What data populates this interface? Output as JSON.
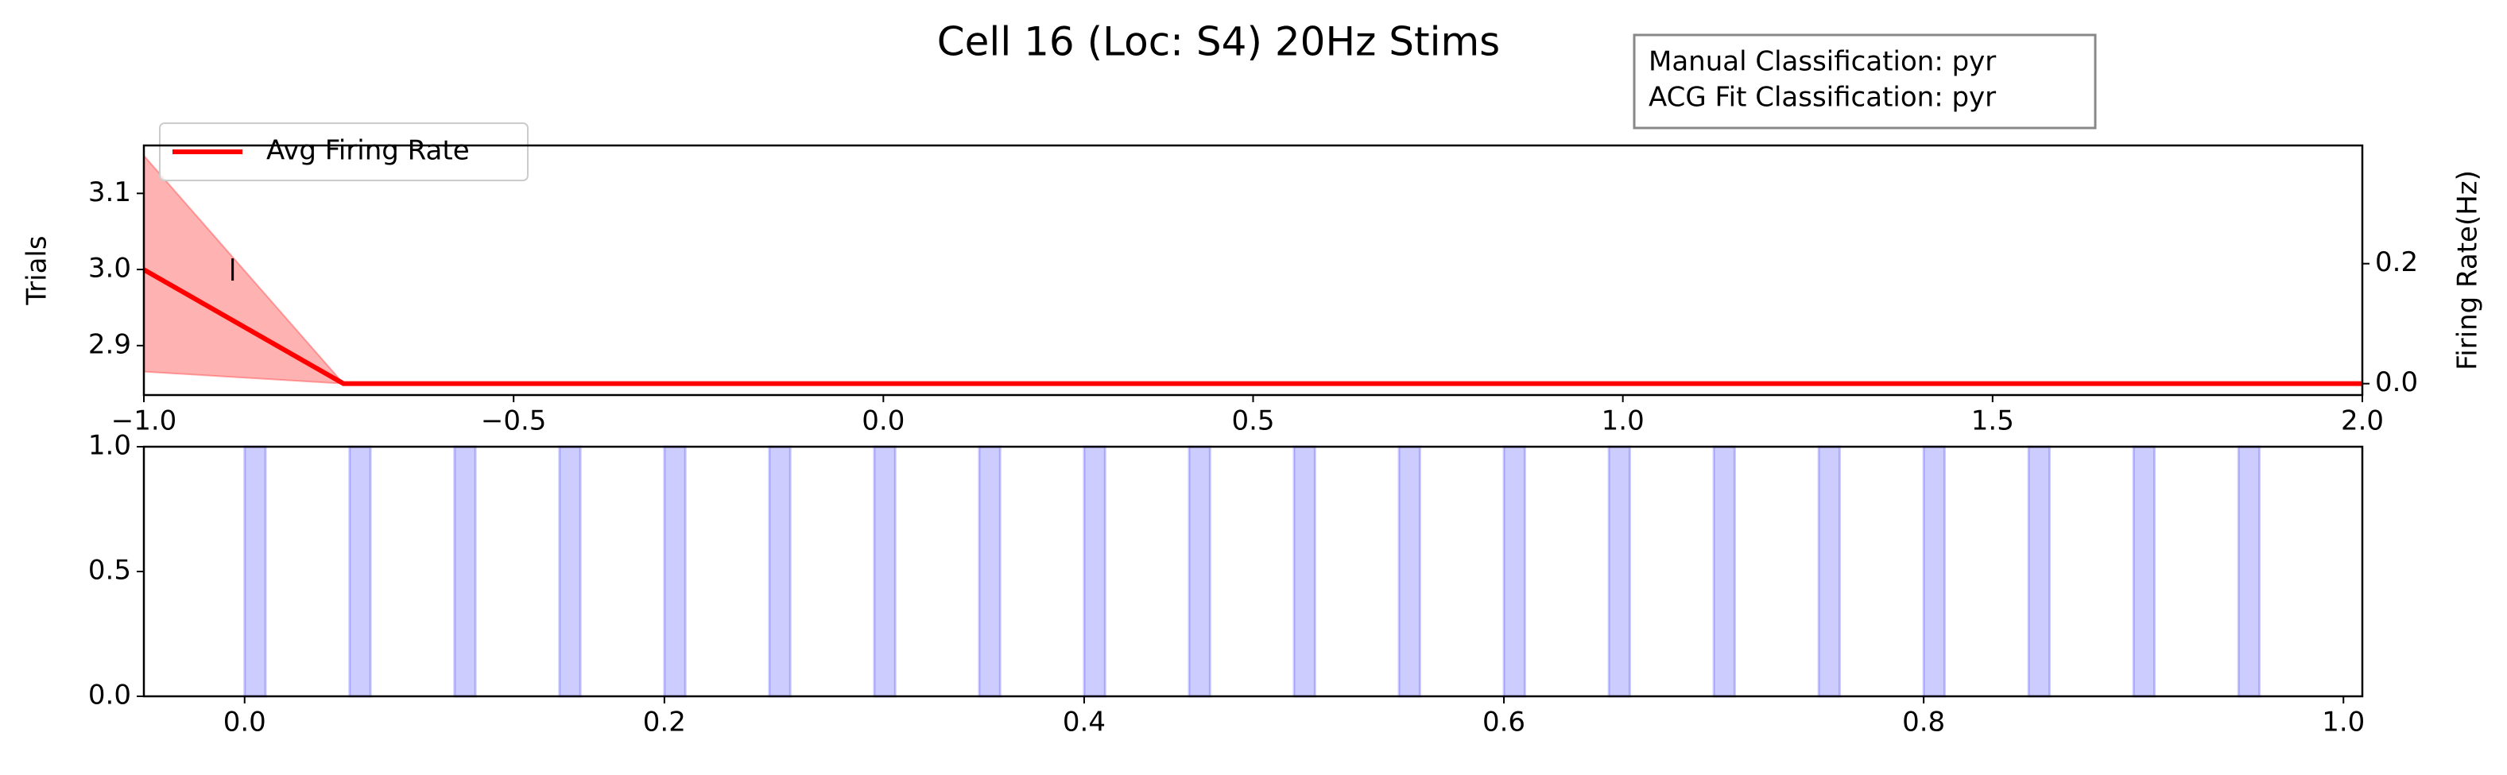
{
  "chart_data": [
    {
      "type": "line",
      "title": "Cell 16 (Loc: S4) 20Hz Stims",
      "ylabel": "Trials",
      "y2label": "Firing Rate(Hz)",
      "annotation": [
        "Manual Classification: pyr",
        "ACG Fit Classification: pyr"
      ],
      "xlim": [
        -1.0,
        2.0
      ],
      "xticks": [
        {
          "value": -1.0,
          "label": "−1.0"
        },
        {
          "value": -0.5,
          "label": "−0.5"
        },
        {
          "value": 0,
          "label": "0.0"
        },
        0.5,
        {
          "value": 1,
          "label": "1.0"
        },
        1.5,
        {
          "value": 2,
          "label": "2.0"
        }
      ],
      "ylim": [
        2.835,
        3.163
      ],
      "yticks": [
        2.9,
        {
          "value": 3,
          "label": "3.0"
        },
        3.1
      ],
      "y2lim": [
        -0.019,
        0.397
      ],
      "y2ticks": [
        {
          "value": 0,
          "label": "0.0"
        },
        0.2
      ],
      "events": {
        "color": "#000000",
        "x": [
          -0.88
        ],
        "y": [
          3
        ]
      },
      "series": [
        {
          "name": "Avg Firing Rate",
          "color": "#ff0000",
          "axis": "y2",
          "x": [
            -1.0,
            -0.73,
            2.0
          ],
          "values": [
            0.19,
            0,
            0
          ],
          "lower": [
            0.02,
            0,
            0
          ],
          "upper": [
            0.38,
            0,
            0
          ]
        }
      ],
      "legend": "upper left"
    },
    {
      "type": "span",
      "xlim": [
        -0.048,
        1.009
      ],
      "ylim": [
        0,
        1
      ],
      "xticks": [
        {
          "value": 0,
          "label": "0.0"
        },
        0.2,
        0.4,
        0.6,
        0.8,
        {
          "value": 1,
          "label": "1.0"
        }
      ],
      "yticks": [
        {
          "value": 0,
          "label": "0.0"
        },
        0.5,
        {
          "value": 1,
          "label": "1.0"
        }
      ],
      "color": "#0000ff",
      "spans": {
        "start": [
          0,
          0.05,
          0.1,
          0.15,
          0.2,
          0.25,
          0.3,
          0.35,
          0.4,
          0.45,
          0.5,
          0.55,
          0.6,
          0.65,
          0.7,
          0.75,
          0.8,
          0.85,
          0.9,
          0.95
        ],
        "end": [
          0.01,
          0.06,
          0.11,
          0.16,
          0.21,
          0.26,
          0.31,
          0.36,
          0.41,
          0.46,
          0.51,
          0.56,
          0.61,
          0.66,
          0.71,
          0.76,
          0.81,
          0.86,
          0.91,
          0.96
        ]
      }
    }
  ]
}
